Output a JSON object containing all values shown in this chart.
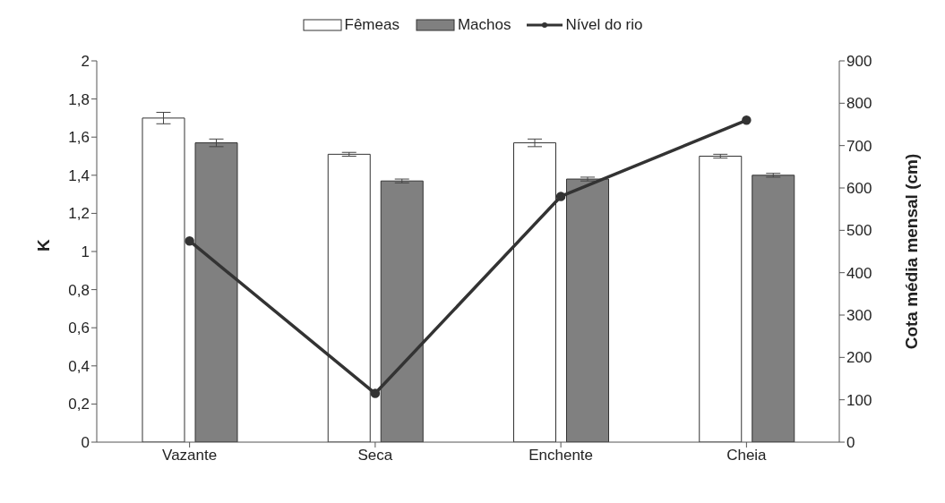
{
  "chart_data": {
    "type": "bar",
    "categories": [
      "Vazante",
      "Seca",
      "Enchente",
      "Cheia"
    ],
    "ylabel": "K",
    "y2label": "Cota média mensal (cm)",
    "ylim": [
      0,
      2
    ],
    "yticks": [
      0,
      {
        "value": 0.2,
        "label": "0,2"
      },
      {
        "value": 0.4,
        "label": "0,4"
      },
      {
        "value": 0.6,
        "label": "0,6"
      },
      {
        "value": 0.8,
        "label": "0,8"
      },
      1,
      {
        "value": 1.2,
        "label": "1,2"
      },
      {
        "value": 1.4,
        "label": "1,4"
      },
      {
        "value": 1.6,
        "label": "1,6"
      },
      {
        "value": 1.8,
        "label": "1,8"
      },
      2
    ],
    "y2lim": [
      0,
      900
    ],
    "y2ticks": [
      0,
      100,
      200,
      300,
      400,
      500,
      600,
      700,
      800,
      900
    ],
    "series": [
      {
        "name": "Fêmeas",
        "color": "#ffffff",
        "values": [
          1.7,
          1.51,
          1.57,
          1.5
        ],
        "errors": [
          0.03,
          0.01,
          0.02,
          0.01
        ]
      },
      {
        "name": "Machos",
        "color": "#808080",
        "values": [
          1.57,
          1.37,
          1.38,
          1.4
        ],
        "errors": [
          0.02,
          0.01,
          0.01,
          0.01
        ]
      },
      {
        "name": "Nível do rio",
        "type": "line",
        "axis": "y2",
        "color": "#333333",
        "values": [
          475,
          115,
          580,
          760
        ],
        "marker": "circle"
      }
    ],
    "legend": "top"
  }
}
